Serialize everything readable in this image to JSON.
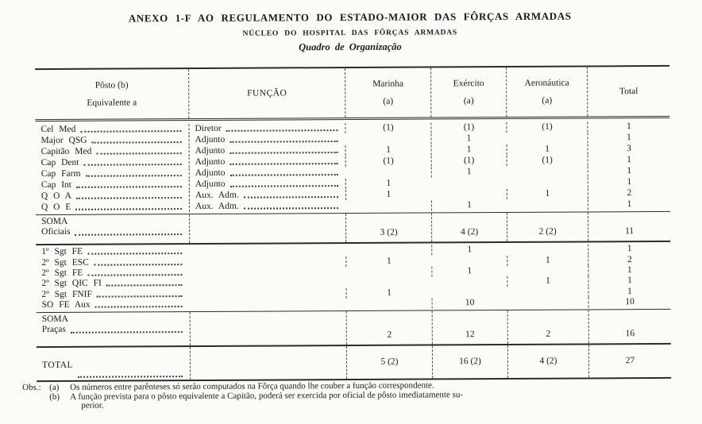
{
  "colors": {
    "paper": "#fcfbf8",
    "ink": "#1a1a1a",
    "rule": "#2b2b2b"
  },
  "page": {
    "title": "ANEXO 1-F AO REGULAMENTO DO ESTADO-MAIOR DAS FÔRÇAS ARMADAS",
    "subtitle": "NÚCLEO DO HOSPITAL DAS FÔRÇAS ARMADAS",
    "subtitle2": "Quadro de Organização"
  },
  "table": {
    "headers": {
      "posto_line1": "Pôsto  (b)",
      "posto_line2": "Equivalente a",
      "funcao": "FUNÇÃO",
      "marinha": "Marinha",
      "exercito": "Exército",
      "aeronautica": "Aeronáutica",
      "note_mark": "(a)",
      "total": "Total"
    },
    "officer_rows": [
      {
        "posto": "Cel  Med",
        "funcao": "Diretor",
        "marinha": "(1)",
        "exercito": "(1)",
        "aeronautica": "(1)",
        "total": "1"
      },
      {
        "posto": "Major  QSG",
        "funcao": "Adjunto",
        "marinha": "",
        "exercito": "1",
        "aeronautica": "",
        "total": "1"
      },
      {
        "posto": "Capitão  Med",
        "funcao": "Adjunto",
        "marinha": "1",
        "exercito": "1",
        "aeronautica": "1",
        "total": "3"
      },
      {
        "posto": "Cap  Dent",
        "funcao": "Adjunto",
        "marinha": "(1)",
        "exercito": "(1)",
        "aeronautica": "(1)",
        "total": "1"
      },
      {
        "posto": "Cap  Farm",
        "funcao": "Adjunto",
        "marinha": "",
        "exercito": "1",
        "aeronautica": "",
        "total": "1"
      },
      {
        "posto": "Cap  Int",
        "funcao": "Adjunto",
        "marinha": "1",
        "exercito": "",
        "aeronautica": "",
        "total": "1"
      },
      {
        "posto": "Q O A",
        "funcao": "Aux. Adm.",
        "marinha": "1",
        "exercito": "",
        "aeronautica": "1",
        "total": "2"
      },
      {
        "posto": "Q O E",
        "funcao": "Aux. Adm.",
        "marinha": "",
        "exercito": "1",
        "aeronautica": "",
        "total": "1"
      }
    ],
    "soma_oficiais": {
      "label1": "SOMA",
      "label2": "Oficiais",
      "marinha": "3 (2)",
      "exercito": "4 (2)",
      "aeronautica": "2 (2)",
      "total": "11"
    },
    "praca_rows": [
      {
        "posto": "1º Sgt FE",
        "marinha": "",
        "exercito": "1",
        "aeronautica": "",
        "total": "1"
      },
      {
        "posto": "2º Sgt ESC",
        "marinha": "1",
        "exercito": "",
        "aeronautica": "1",
        "total": "2"
      },
      {
        "posto": "2º Sgt FE",
        "marinha": "",
        "exercito": "1",
        "aeronautica": "",
        "total": "1"
      },
      {
        "posto": "2º Sgt QIC FI",
        "marinha": "",
        "exercito": "",
        "aeronautica": "1",
        "total": "1"
      },
      {
        "posto": "2º Sgt FNIF",
        "marinha": "1",
        "exercito": "",
        "aeronautica": "",
        "total": "1"
      },
      {
        "posto": "SO FE Aux",
        "marinha": "",
        "exercito": "10",
        "aeronautica": "",
        "total": "10"
      }
    ],
    "soma_pracas": {
      "label1": "SOMA",
      "label2": "Praças",
      "marinha": "2",
      "exercito": "12",
      "aeronautica": "2",
      "total": "16"
    },
    "total_row": {
      "label": "TOTAL",
      "marinha": "5 (2)",
      "exercito": "16 (2)",
      "aeronautica": "4 (2)",
      "total": "27"
    }
  },
  "footnotes": {
    "prefix": "Obs.:",
    "a_mark": "(a)",
    "a_text": "Os números entre parênteses só serão computados na Fôrça quando lhe couber a função correspondente.",
    "b_mark": "(b)",
    "b_line1": "A função prevista para o pôsto equivalente a Capitão, poderá ser exercida por oficial de pôsto imediatamente su-",
    "b_line2": "perior."
  }
}
